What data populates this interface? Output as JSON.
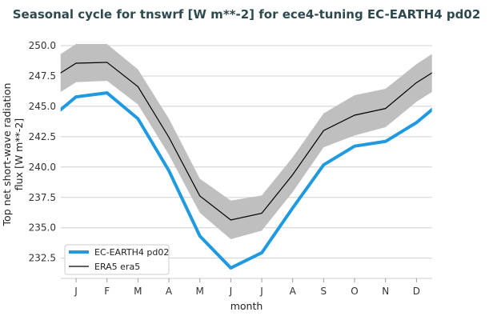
{
  "chart_data": {
    "type": "line",
    "title": "Seasonal cycle for tnswrf [W m**-2] for ece4-tuning EC-EARTH4 pd02",
    "xlabel": "month",
    "ylabel_lines": [
      "Top net short-wave radiation",
      "flux [W m**-2]"
    ],
    "categories": [
      "J",
      "F",
      "M",
      "A",
      "M",
      "J",
      "J",
      "A",
      "S",
      "O",
      "N",
      "D"
    ],
    "ylim": [
      230.83,
      250.35
    ],
    "yticks": [
      "232.5",
      "235.0",
      "237.5",
      "240.0",
      "242.5",
      "245.0",
      "247.5",
      "250.0"
    ],
    "grid": "horizontal",
    "legend_position": "bottom-left",
    "colors": {
      "title": "#2f4a4f",
      "model": "#1f9ae0",
      "reference": "#000000",
      "band": "#bfbfbf",
      "grid": "#d0d0d0"
    },
    "series": [
      {
        "name": "EC-EARTH4 pd02",
        "values": [
          245.78,
          246.11,
          243.98,
          239.7,
          234.32,
          231.69,
          232.94,
          236.63,
          240.18,
          241.72,
          242.11,
          243.66
        ]
      },
      {
        "name": "ERA5 era5",
        "values": [
          248.55,
          248.62,
          246.62,
          242.45,
          237.62,
          235.64,
          236.19,
          239.37,
          243.0,
          244.27,
          244.82,
          246.95
        ],
        "band_upper": [
          250.13,
          250.13,
          248.04,
          243.98,
          239.04,
          237.24,
          237.66,
          240.8,
          244.42,
          245.92,
          246.44,
          248.48
        ],
        "band_lower": [
          246.99,
          247.1,
          245.15,
          241.02,
          236.23,
          234.06,
          234.76,
          237.94,
          241.63,
          242.6,
          243.28,
          245.37
        ]
      }
    ]
  }
}
